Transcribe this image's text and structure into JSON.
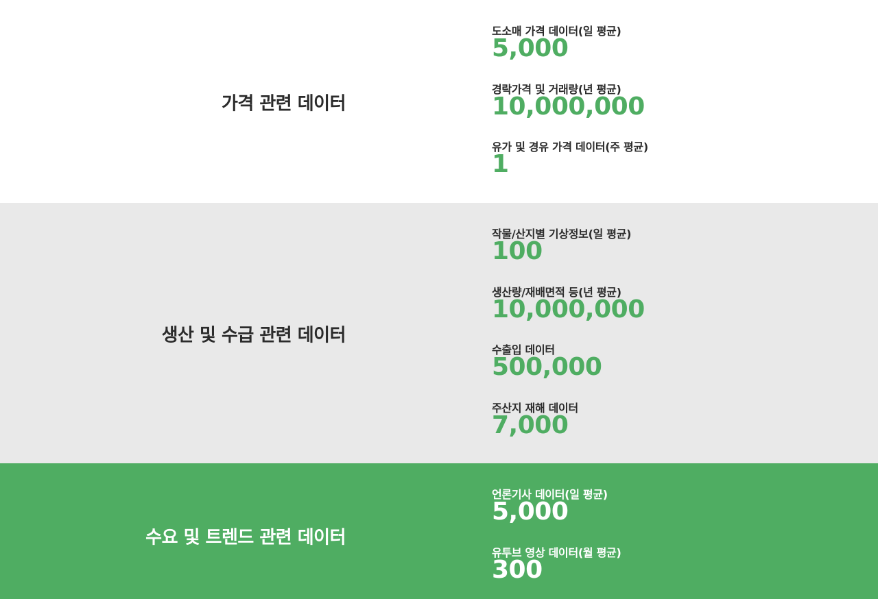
{
  "sections": [
    {
      "title": "가격 관련 데이터",
      "items": [
        {
          "label": "도소매 가격 데이터(일 평균)",
          "value": "5,000"
        },
        {
          "label": "경락가격 및 거래량(년 평균)",
          "value": "10,000,000"
        },
        {
          "label": "유가 및 경유 가격 데이터(주 평균)",
          "value": "1"
        }
      ]
    },
    {
      "title": "생산 및 수급 관련 데이터",
      "items": [
        {
          "label": "작물/산지별 기상정보(일 평균)",
          "value": "100"
        },
        {
          "label": "생산량/재배면적 등(년 평균)",
          "value": "10,000,000"
        },
        {
          "label": "수출입 데이터",
          "value": "500,000"
        },
        {
          "label": "주산지 재해 데이터",
          "value": "7,000"
        }
      ]
    },
    {
      "title": "수요 및 트렌드 관련 데이터",
      "items": [
        {
          "label": "언론기사 데이터(일 평균)",
          "value": "5,000"
        },
        {
          "label": "유투브 영상 데이터(월 평균)",
          "value": "300"
        }
      ]
    }
  ],
  "colors": {
    "accent_green": "#4fad62",
    "section_gray": "#e9e9e9",
    "text_dark": "#2b2b2b",
    "white": "#ffffff"
  }
}
